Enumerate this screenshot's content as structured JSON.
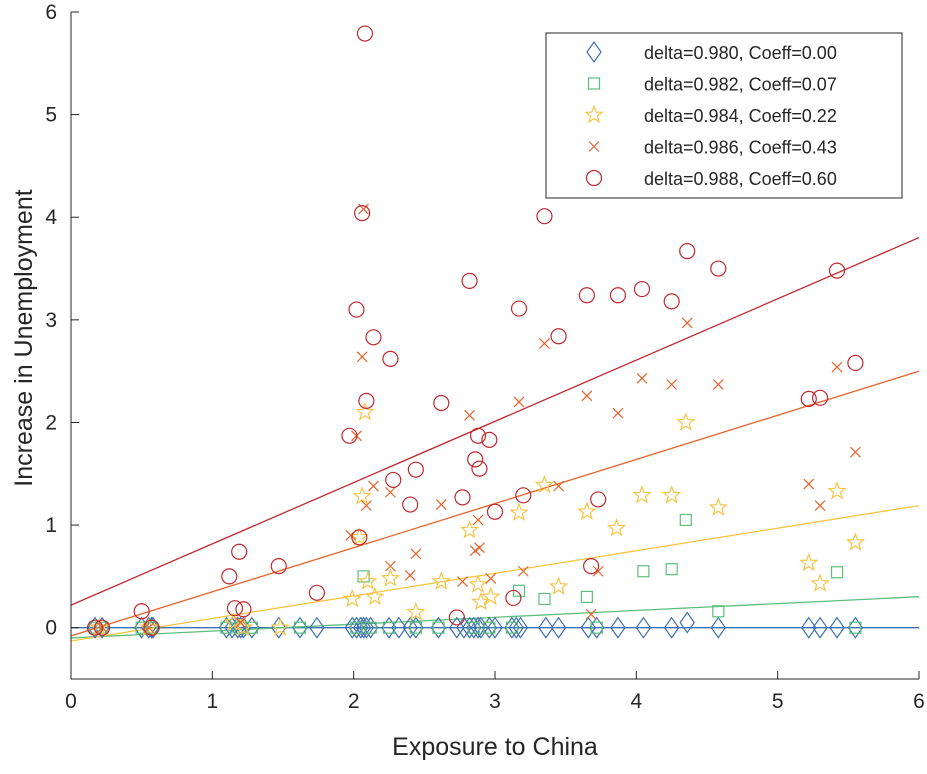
{
  "chart_data": {
    "type": "scatter",
    "title": "",
    "xlabel": "Exposure to China",
    "ylabel": "Increase in Unemployment",
    "xlim": [
      0,
      6
    ],
    "ylim": [
      -0.5,
      6
    ],
    "xticks": [
      0,
      1,
      2,
      3,
      4,
      5,
      6
    ],
    "yticks": [
      0,
      1,
      2,
      3,
      4,
      5,
      6
    ],
    "grid": false,
    "legend_location": "top-right",
    "series": [
      {
        "name": "delta=0.980, Coeff=0.00",
        "marker": "diamond",
        "color": "#3E6FB0",
        "fit": {
          "intercept": 0.0,
          "slope": 0.0
        },
        "points": [
          [
            0.17,
            0
          ],
          [
            0.22,
            0
          ],
          [
            0.5,
            0
          ],
          [
            0.55,
            0
          ],
          [
            0.57,
            0
          ],
          [
            0.58,
            0
          ],
          [
            1.1,
            0
          ],
          [
            1.14,
            0
          ],
          [
            1.18,
            0
          ],
          [
            1.2,
            0
          ],
          [
            1.22,
            0
          ],
          [
            1.28,
            0
          ],
          [
            1.47,
            0
          ],
          [
            1.62,
            0
          ],
          [
            1.74,
            0
          ],
          [
            1.99,
            0
          ],
          [
            2.02,
            0
          ],
          [
            2.05,
            0
          ],
          [
            2.07,
            0
          ],
          [
            2.09,
            0
          ],
          [
            2.12,
            0
          ],
          [
            2.25,
            0
          ],
          [
            2.32,
            0
          ],
          [
            2.4,
            0
          ],
          [
            2.44,
            0
          ],
          [
            2.6,
            0
          ],
          [
            2.73,
            0
          ],
          [
            2.78,
            0
          ],
          [
            2.82,
            0
          ],
          [
            2.85,
            0
          ],
          [
            2.88,
            0
          ],
          [
            2.9,
            0
          ],
          [
            2.96,
            0
          ],
          [
            3.0,
            0
          ],
          [
            3.12,
            0
          ],
          [
            3.15,
            0
          ],
          [
            3.18,
            0
          ],
          [
            3.36,
            0
          ],
          [
            3.45,
            0
          ],
          [
            3.66,
            0
          ],
          [
            3.72,
            0
          ],
          [
            3.87,
            0
          ],
          [
            4.05,
            0
          ],
          [
            4.25,
            0
          ],
          [
            4.36,
            0.05
          ],
          [
            4.58,
            0
          ],
          [
            5.22,
            0
          ],
          [
            5.3,
            0
          ],
          [
            5.42,
            0
          ],
          [
            5.55,
            0
          ]
        ]
      },
      {
        "name": "delta=0.982, Coeff=0.07",
        "marker": "square",
        "color": "#5DBE7B",
        "fit": {
          "intercept": -0.1,
          "slope": 0.067
        },
        "points": [
          [
            0.17,
            0
          ],
          [
            0.22,
            0
          ],
          [
            0.5,
            0
          ],
          [
            0.57,
            0
          ],
          [
            1.1,
            0
          ],
          [
            1.2,
            0
          ],
          [
            1.28,
            0
          ],
          [
            1.62,
            0
          ],
          [
            2.02,
            0
          ],
          [
            2.07,
            0.5
          ],
          [
            2.12,
            0
          ],
          [
            2.25,
            0
          ],
          [
            2.44,
            0
          ],
          [
            2.6,
            0
          ],
          [
            2.85,
            0
          ],
          [
            2.96,
            0
          ],
          [
            3.12,
            0
          ],
          [
            3.17,
            0.36
          ],
          [
            3.35,
            0.28
          ],
          [
            3.65,
            0.3
          ],
          [
            3.72,
            0
          ],
          [
            4.05,
            0.55
          ],
          [
            4.25,
            0.57
          ],
          [
            4.35,
            1.05
          ],
          [
            4.58,
            0.16
          ],
          [
            5.42,
            0.54
          ],
          [
            5.55,
            0
          ]
        ]
      },
      {
        "name": "delta=0.984, Coeff=0.22",
        "marker": "star",
        "color": "#F6C445",
        "fit": {
          "intercept": -0.13,
          "slope": 0.22
        },
        "points": [
          [
            0.2,
            0
          ],
          [
            0.55,
            0
          ],
          [
            1.15,
            0.05
          ],
          [
            1.22,
            0
          ],
          [
            1.48,
            0
          ],
          [
            1.99,
            0.28
          ],
          [
            2.04,
            0.88
          ],
          [
            2.06,
            1.28
          ],
          [
            2.08,
            2.1
          ],
          [
            2.1,
            0.45
          ],
          [
            2.15,
            0.3
          ],
          [
            2.26,
            0.48
          ],
          [
            2.44,
            0.15
          ],
          [
            2.62,
            0.45
          ],
          [
            2.82,
            0.95
          ],
          [
            2.88,
            0.42
          ],
          [
            2.9,
            0.25
          ],
          [
            2.97,
            0.3
          ],
          [
            3.17,
            1.12
          ],
          [
            3.35,
            1.39
          ],
          [
            3.45,
            0.4
          ],
          [
            3.65,
            1.13
          ],
          [
            3.86,
            0.97
          ],
          [
            4.04,
            1.29
          ],
          [
            4.25,
            1.29
          ],
          [
            4.35,
            2.0
          ],
          [
            4.58,
            1.17
          ],
          [
            5.22,
            0.63
          ],
          [
            5.3,
            0.43
          ],
          [
            5.42,
            1.33
          ],
          [
            5.55,
            0.83
          ]
        ]
      },
      {
        "name": "delta=0.986, Coeff=0.43",
        "marker": "cross",
        "color": "#E8622B",
        "fit": {
          "intercept": -0.08,
          "slope": 0.43
        },
        "points": [
          [
            0.22,
            0
          ],
          [
            0.55,
            0
          ],
          [
            1.2,
            0.05
          ],
          [
            1.98,
            0.9
          ],
          [
            2.02,
            1.87
          ],
          [
            2.06,
            2.64
          ],
          [
            2.07,
            4.08
          ],
          [
            2.09,
            1.19
          ],
          [
            2.14,
            1.38
          ],
          [
            2.26,
            1.32
          ],
          [
            2.26,
            0.6
          ],
          [
            2.4,
            0.51
          ],
          [
            2.44,
            0.72
          ],
          [
            2.62,
            1.2
          ],
          [
            2.77,
            0.45
          ],
          [
            2.82,
            2.07
          ],
          [
            2.86,
            0.75
          ],
          [
            2.88,
            1.05
          ],
          [
            2.89,
            0.78
          ],
          [
            2.97,
            0.48
          ],
          [
            3.17,
            2.2
          ],
          [
            3.2,
            0.55
          ],
          [
            3.35,
            2.77
          ],
          [
            3.45,
            1.38
          ],
          [
            3.65,
            2.26
          ],
          [
            3.68,
            0.13
          ],
          [
            3.73,
            0.55
          ],
          [
            3.87,
            2.09
          ],
          [
            4.04,
            2.43
          ],
          [
            4.25,
            2.37
          ],
          [
            4.36,
            2.97
          ],
          [
            4.58,
            2.37
          ],
          [
            5.22,
            1.4
          ],
          [
            5.3,
            1.19
          ],
          [
            5.42,
            2.54
          ],
          [
            5.55,
            1.71
          ]
        ]
      },
      {
        "name": "delta=0.988, Coeff=0.60",
        "marker": "circle",
        "color": "#C1272D",
        "fit": {
          "intercept": 0.22,
          "slope": 0.597
        },
        "points": [
          [
            0.17,
            0
          ],
          [
            0.22,
            0
          ],
          [
            0.5,
            0.16
          ],
          [
            0.57,
            0
          ],
          [
            1.12,
            0.5
          ],
          [
            1.16,
            0.19
          ],
          [
            1.19,
            0.74
          ],
          [
            1.22,
            0.18
          ],
          [
            1.47,
            0.6
          ],
          [
            1.74,
            0.34
          ],
          [
            1.97,
            1.87
          ],
          [
            2.02,
            3.1
          ],
          [
            2.04,
            0.88
          ],
          [
            2.06,
            4.04
          ],
          [
            2.08,
            5.79
          ],
          [
            2.09,
            2.21
          ],
          [
            2.14,
            2.83
          ],
          [
            2.26,
            2.62
          ],
          [
            2.28,
            1.44
          ],
          [
            2.4,
            1.2
          ],
          [
            2.44,
            1.54
          ],
          [
            2.62,
            2.19
          ],
          [
            2.73,
            0.1
          ],
          [
            2.77,
            1.27
          ],
          [
            2.82,
            3.38
          ],
          [
            2.86,
            1.64
          ],
          [
            2.88,
            1.87
          ],
          [
            2.89,
            1.55
          ],
          [
            2.96,
            1.83
          ],
          [
            3.0,
            1.13
          ],
          [
            3.13,
            0.29
          ],
          [
            3.17,
            3.11
          ],
          [
            3.2,
            1.29
          ],
          [
            3.35,
            4.01
          ],
          [
            3.45,
            2.84
          ],
          [
            3.65,
            3.24
          ],
          [
            3.68,
            0.6
          ],
          [
            3.73,
            1.25
          ],
          [
            3.87,
            3.24
          ],
          [
            4.04,
            3.3
          ],
          [
            4.25,
            3.18
          ],
          [
            4.36,
            3.67
          ],
          [
            4.58,
            3.5
          ],
          [
            5.22,
            2.23
          ],
          [
            5.3,
            2.24
          ],
          [
            5.42,
            3.48
          ],
          [
            5.55,
            2.58
          ]
        ]
      }
    ]
  }
}
